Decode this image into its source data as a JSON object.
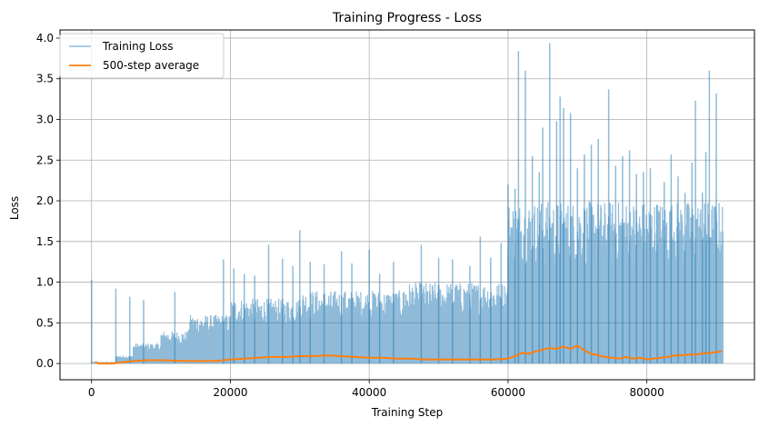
{
  "chart_data": {
    "type": "line",
    "title": "Training Progress - Loss",
    "xlabel": "Training Step",
    "ylabel": "Loss",
    "xlim": [
      -4550,
      95500
    ],
    "ylim": [
      -0.2,
      4.1
    ],
    "xticks": [
      0,
      20000,
      40000,
      60000,
      80000
    ],
    "yticks": [
      0.0,
      0.5,
      1.0,
      1.5,
      2.0,
      2.5,
      3.0,
      3.5,
      4.0
    ],
    "grid": true,
    "legend_position": "top-left",
    "series": [
      {
        "name": "Training Loss",
        "color": "#1f77b4",
        "opacity": 0.5,
        "regions": [
          {
            "x_start": 0,
            "x_end": 3500,
            "base_max": 0.02
          },
          {
            "x_start": 3500,
            "x_end": 6000,
            "base_max": 0.1
          },
          {
            "x_start": 6000,
            "x_end": 10000,
            "base_max": 0.25
          },
          {
            "x_start": 10000,
            "x_end": 14000,
            "base_max": 0.4
          },
          {
            "x_start": 14000,
            "x_end": 20000,
            "base_max": 0.6
          },
          {
            "x_start": 20000,
            "x_end": 30000,
            "base_max": 0.8
          },
          {
            "x_start": 30000,
            "x_end": 45000,
            "base_max": 0.9
          },
          {
            "x_start": 45000,
            "x_end": 60000,
            "base_max": 1.0
          },
          {
            "x_start": 60000,
            "x_end": 91000,
            "base_max": 2.0
          }
        ],
        "spikes": [
          [
            0,
            1.03
          ],
          [
            3500,
            0.92
          ],
          [
            5500,
            0.82
          ],
          [
            7500,
            0.78
          ],
          [
            12000,
            0.88
          ],
          [
            19000,
            1.28
          ],
          [
            20500,
            1.17
          ],
          [
            22000,
            1.1
          ],
          [
            23500,
            1.08
          ],
          [
            25500,
            1.46
          ],
          [
            27500,
            1.29
          ],
          [
            29000,
            1.2
          ],
          [
            30000,
            1.64
          ],
          [
            31500,
            1.25
          ],
          [
            33500,
            1.22
          ],
          [
            36000,
            1.38
          ],
          [
            37500,
            1.23
          ],
          [
            40000,
            1.4
          ],
          [
            41500,
            1.1
          ],
          [
            43500,
            1.25
          ],
          [
            47500,
            1.46
          ],
          [
            50000,
            1.3
          ],
          [
            52000,
            1.28
          ],
          [
            54500,
            1.2
          ],
          [
            56000,
            1.56
          ],
          [
            57500,
            1.3
          ],
          [
            59000,
            1.48
          ],
          [
            60000,
            2.2
          ],
          [
            61000,
            2.15
          ],
          [
            61500,
            3.84
          ],
          [
            62500,
            3.6
          ],
          [
            63500,
            2.55
          ],
          [
            64500,
            2.35
          ],
          [
            65000,
            2.9
          ],
          [
            66000,
            3.94
          ],
          [
            67000,
            2.98
          ],
          [
            67500,
            3.28
          ],
          [
            68000,
            3.14
          ],
          [
            69000,
            3.08
          ],
          [
            70000,
            2.4
          ],
          [
            71000,
            2.57
          ],
          [
            72000,
            2.69
          ],
          [
            73000,
            2.76
          ],
          [
            74500,
            3.37
          ],
          [
            75500,
            2.43
          ],
          [
            76500,
            2.55
          ],
          [
            77500,
            2.62
          ],
          [
            78500,
            2.33
          ],
          [
            79500,
            2.35
          ],
          [
            80500,
            2.4
          ],
          [
            81500,
            1.95
          ],
          [
            82500,
            2.23
          ],
          [
            83500,
            2.57
          ],
          [
            84500,
            2.3
          ],
          [
            85500,
            2.1
          ],
          [
            86500,
            2.47
          ],
          [
            87000,
            3.23
          ],
          [
            88000,
            2.1
          ],
          [
            88500,
            2.6
          ],
          [
            89000,
            3.6
          ],
          [
            90000,
            3.32
          ]
        ]
      },
      {
        "name": "500-step average",
        "color": "#ff7f0e",
        "points": [
          [
            500,
            0.02
          ],
          [
            1000,
            0.0
          ],
          [
            3000,
            0.0
          ],
          [
            4000,
            0.01
          ],
          [
            6000,
            0.03
          ],
          [
            8000,
            0.04
          ],
          [
            10000,
            0.04
          ],
          [
            14000,
            0.03
          ],
          [
            18000,
            0.03
          ],
          [
            20000,
            0.05
          ],
          [
            22000,
            0.06
          ],
          [
            24000,
            0.07
          ],
          [
            26000,
            0.08
          ],
          [
            28000,
            0.08
          ],
          [
            30000,
            0.09
          ],
          [
            32000,
            0.09
          ],
          [
            34000,
            0.1
          ],
          [
            36000,
            0.09
          ],
          [
            38000,
            0.08
          ],
          [
            40000,
            0.07
          ],
          [
            42000,
            0.07
          ],
          [
            44000,
            0.06
          ],
          [
            46000,
            0.06
          ],
          [
            48000,
            0.05
          ],
          [
            50000,
            0.05
          ],
          [
            52000,
            0.05
          ],
          [
            54000,
            0.05
          ],
          [
            56000,
            0.05
          ],
          [
            58000,
            0.05
          ],
          [
            60000,
            0.06
          ],
          [
            61000,
            0.09
          ],
          [
            62000,
            0.13
          ],
          [
            63000,
            0.12
          ],
          [
            64000,
            0.15
          ],
          [
            65000,
            0.17
          ],
          [
            66000,
            0.19
          ],
          [
            67000,
            0.18
          ],
          [
            68000,
            0.21
          ],
          [
            69000,
            0.18
          ],
          [
            70000,
            0.22
          ],
          [
            71000,
            0.16
          ],
          [
            72000,
            0.12
          ],
          [
            73000,
            0.1
          ],
          [
            74000,
            0.08
          ],
          [
            75000,
            0.07
          ],
          [
            76000,
            0.06
          ],
          [
            77000,
            0.08
          ],
          [
            78000,
            0.06
          ],
          [
            79000,
            0.07
          ],
          [
            80000,
            0.05
          ],
          [
            81000,
            0.06
          ],
          [
            82000,
            0.07
          ],
          [
            83000,
            0.08
          ],
          [
            84000,
            0.1
          ],
          [
            85000,
            0.1
          ],
          [
            86000,
            0.11
          ],
          [
            87000,
            0.11
          ],
          [
            88000,
            0.12
          ],
          [
            89000,
            0.13
          ],
          [
            90000,
            0.14
          ],
          [
            90800,
            0.15
          ]
        ]
      }
    ]
  },
  "colors": {
    "grid": "#b0b0b0",
    "axis": "#000000",
    "legend_border": "#cccccc"
  }
}
